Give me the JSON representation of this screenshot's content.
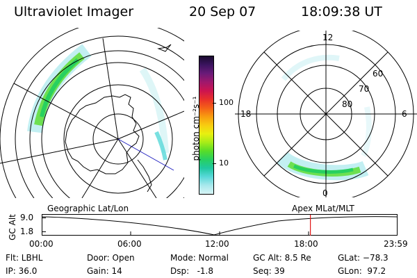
{
  "header": {
    "title": "Ultraviolet Imager",
    "date": "20 Sep 07",
    "time": "18:09:38 UT"
  },
  "colorbar": {
    "label": "photon cm⁻²s⁻¹",
    "ticks": [
      "100",
      "10"
    ],
    "colors": [
      "#1a0a2e",
      "#3c1460",
      "#6a1a78",
      "#a0186c",
      "#cc1450",
      "#e8302a",
      "#f46018",
      "#f89c10",
      "#f8cc10",
      "#e8f010",
      "#a8ec18",
      "#58dc28",
      "#28d060",
      "#20c8a0",
      "#58d8d8",
      "#a8e8ec",
      "#d8f4f6"
    ]
  },
  "right_map": {
    "labels": {
      "top": "12",
      "left": "18",
      "right": "6",
      "bottom": "0",
      "lat60": "60",
      "lat70": "70",
      "lat80": "80"
    }
  },
  "bottom": {
    "left_label": "Geographic Lat/Lon",
    "right_label": "Apex MLat/MLT",
    "y_axis_title": "GC Alt",
    "y_ticks": [
      "9.0",
      "1.8"
    ],
    "x_ticks": [
      "00:00",
      "06:00",
      "12:00",
      "18:00",
      "23:59"
    ],
    "current_time_fraction": 0.7566
  },
  "info": {
    "flt": "Flt: LBHL",
    "ip": "IP: 36.0",
    "door": "Door: Open",
    "gain": "Gain: 14",
    "mode": "Mode: Normal",
    "dsp": "Dsp:   -1.8",
    "gcalt": "GC Alt: 8.5 Re",
    "seq": "Seq: 39",
    "glat": "GLat: −78.3",
    "glon": "GLon:  97.2"
  }
}
